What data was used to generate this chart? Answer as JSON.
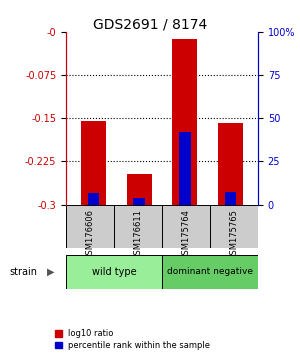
{
  "title": "GDS2691 / 8174",
  "samples": [
    "GSM176606",
    "GSM176611",
    "GSM175764",
    "GSM175765"
  ],
  "log10_ratios": [
    -0.155,
    -0.247,
    -0.012,
    -0.158
  ],
  "percentile_ranks": [
    7.0,
    4.0,
    42.0,
    7.5
  ],
  "ylim_left": [
    -0.3,
    0.0
  ],
  "ylim_right": [
    0.0,
    100.0
  ],
  "yticks_left": [
    0.0,
    -0.075,
    -0.15,
    -0.225,
    -0.3
  ],
  "ytick_labels_left": [
    "-0",
    "-0.075",
    "-0.15",
    "-0.225",
    "-0.3"
  ],
  "yticks_right": [
    0,
    25,
    50,
    75,
    100
  ],
  "ytick_labels_right": [
    "0",
    "25",
    "50",
    "75",
    "100%"
  ],
  "group_wt_label": "wild type",
  "group_dn_label": "dominant negative",
  "group_wt_color": "#99ee99",
  "group_dn_color": "#66cc66",
  "strain_label": "strain",
  "red_color": "#cc0000",
  "blue_color": "#0000cc",
  "legend_red": "log10 ratio",
  "legend_blue": "percentile rank within the sample",
  "background_color": "#ffffff",
  "label_box_color": "#cccccc",
  "left_axis_color": "#cc0000",
  "right_axis_color": "#0000cc"
}
